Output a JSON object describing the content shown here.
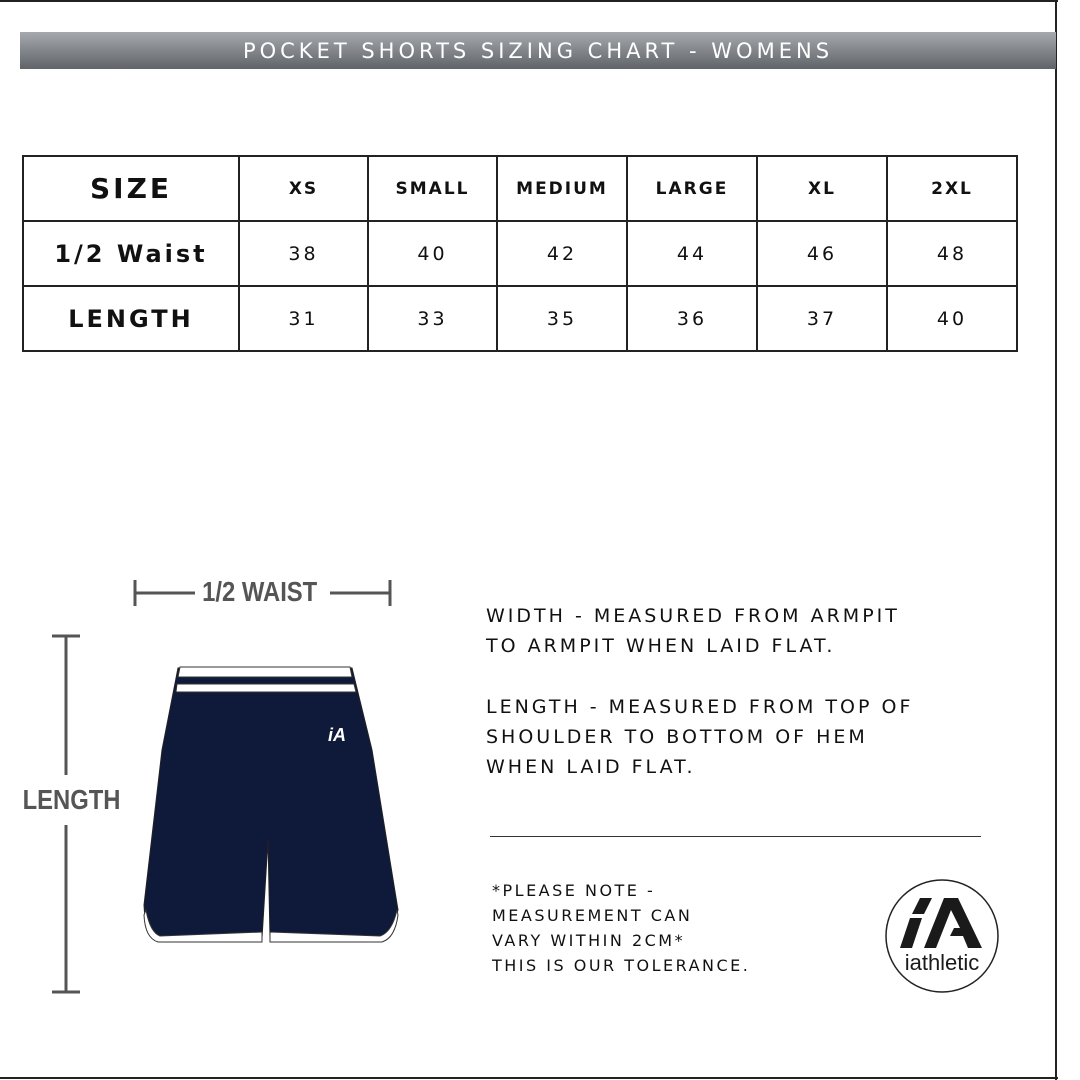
{
  "title": "POCKET SHORTS SIZING CHART - WOMENS",
  "table": {
    "header": [
      "SIZE",
      "XS",
      "SMALL",
      "MEDIUM",
      "LARGE",
      "XL",
      "2XL"
    ],
    "rows": [
      {
        "label": "1/2 Waist",
        "values": [
          "38",
          "40",
          "42",
          "44",
          "46",
          "48"
        ]
      },
      {
        "label": "LENGTH",
        "values": [
          "31",
          "33",
          "35",
          "36",
          "37",
          "40"
        ]
      }
    ]
  },
  "diagram": {
    "waist_label": "1/2 WAIST",
    "length_label": "LENGTH",
    "shorts_color": "#0f1a3a"
  },
  "instructions": {
    "width": [
      "WIDTH - MEASURED FROM ARMPIT",
      "TO ARMPIT WHEN LAID FLAT."
    ],
    "length": [
      "LENGTH - MEASURED FROM TOP OF",
      "SHOULDER TO BOTTOM OF HEM",
      "WHEN LAID FLAT."
    ]
  },
  "note": [
    "*PLEASE NOTE -",
    "MEASUREMENT CAN",
    "VARY WITHIN 2CM*",
    "THIS IS OUR TOLERANCE."
  ],
  "logo": {
    "mark": "iA",
    "text": "iathletic"
  }
}
